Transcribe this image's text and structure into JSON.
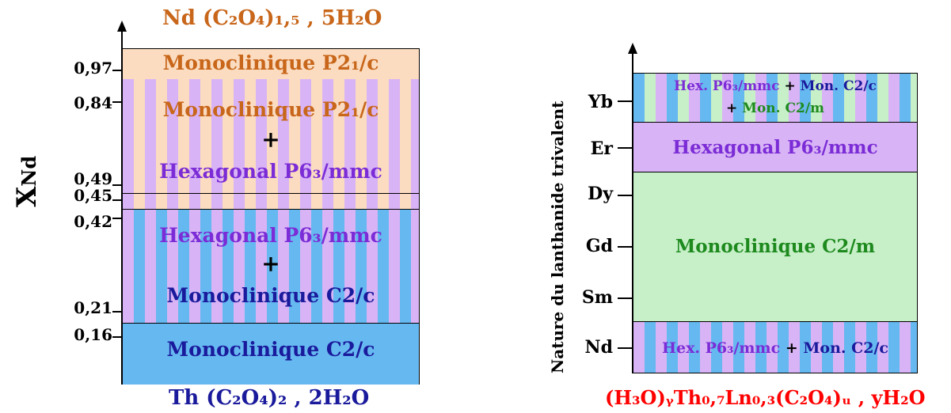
{
  "left": {
    "top_formula": "Nd (C₂O₄)₁,₅ , 5H₂O",
    "bottom_formula": "Th (C₂O₄)₂ , 2H₂O",
    "axis_label": "X",
    "axis_label_sub": "Nd",
    "ticks": [
      "0,97",
      "0,84",
      "0,49",
      "0,45",
      "0,42",
      "0,21",
      "0,16"
    ],
    "zones": {
      "z1": "Monoclinique P2₁/c",
      "z2_line1": "Monoclinique P2₁/c",
      "z2_plus": "+",
      "z2_line2": "Hexagonal P6₃/mmc",
      "z4_line1": "Hexagonal P6₃/mmc",
      "z4_plus": "+",
      "z4_line2": "Monoclinique C2/c",
      "z5": "Monoclinique C2/c"
    }
  },
  "right": {
    "axis_label": "Nature du lanthanide trivalent",
    "bottom_formula": "(H₃O)ᵧTh₀,₇Ln₀,₃(C₂O₄)ᵤ , yH₂O",
    "ticks": [
      "Yb",
      "Er",
      "Dy",
      "Gd",
      "Sm",
      "Nd"
    ],
    "zones": {
      "r1_a": "Hex. P6₃/mmc",
      "r1_plus": "+",
      "r1_b": "Mon. C2/c",
      "r1_plus2": "+",
      "r1_c": "Mon. C2/m",
      "r2": "Hexagonal P6₃/mmc",
      "r3": "Monoclinique C2/m",
      "r4_a": "Hex. P6₃/mmc",
      "r4_plus": "+",
      "r4_b": "Mon. C2/c"
    }
  }
}
